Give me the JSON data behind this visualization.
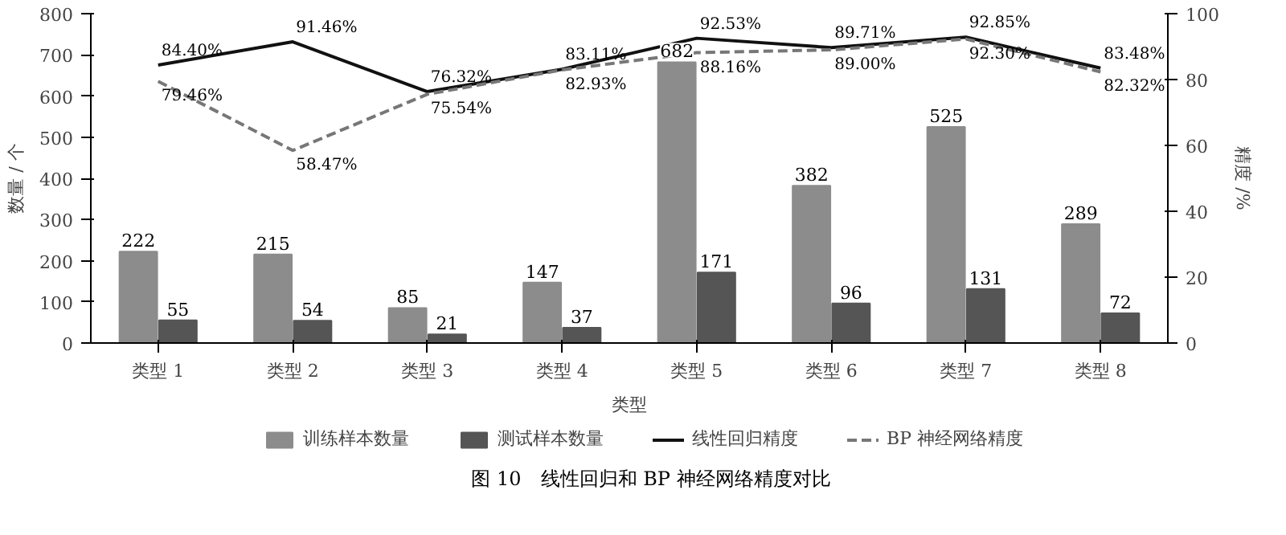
{
  "chart_data": {
    "type": "bar",
    "title": "图 10　线性回归和 BP 神经网络精度对比",
    "xlabel": "类型",
    "ylabel": "数量 / 个",
    "y2label": "精度 /%",
    "categories": [
      "类型 1",
      "类型 2",
      "类型 3",
      "类型 4",
      "类型 5",
      "类型 6",
      "类型 7",
      "类型 8"
    ],
    "series": [
      {
        "name": "训练样本数量",
        "color": "#8c8c8c",
        "values": [
          222,
          215,
          85,
          147,
          682,
          382,
          525,
          289
        ],
        "value_labels": [
          "222",
          "215",
          "85",
          "147",
          "682",
          "382",
          "525",
          "289"
        ]
      },
      {
        "name": "测试样本数量",
        "color": "#555555",
        "values": [
          55,
          54,
          21,
          37,
          171,
          96,
          131,
          72
        ],
        "value_labels": [
          "55",
          "54",
          "21",
          "37",
          "171",
          "96",
          "131",
          "72"
        ]
      },
      {
        "name": "线性回归精度",
        "type": "line",
        "axis": "y2",
        "color": "#111111",
        "line_style": "solid",
        "values": [
          84.4,
          91.46,
          76.32,
          83.11,
          92.53,
          89.71,
          92.85,
          83.48
        ],
        "value_labels": [
          "84.40%",
          "91.46%",
          "76.32%",
          "83.11%",
          "92.53%",
          "89.71%",
          "92.85%",
          "83.48%"
        ]
      },
      {
        "name": "BP 神经网络精度",
        "type": "line",
        "axis": "y2",
        "color": "#777777",
        "line_style": "dashed",
        "values": [
          79.46,
          58.47,
          75.54,
          82.93,
          88.16,
          89.0,
          92.3,
          82.32
        ],
        "value_labels": [
          "79.46%",
          "58.47%",
          "75.54%",
          "82.93%",
          "88.16%",
          "89.00%",
          "92.30%",
          "82.32%"
        ]
      }
    ],
    "ylim": [
      0,
      800
    ],
    "yticks": [
      0,
      100,
      200,
      300,
      400,
      500,
      600,
      700,
      800
    ],
    "y2lim": [
      0,
      100
    ],
    "y2ticks": [
      0,
      20,
      40,
      60,
      80,
      100
    ],
    "grid": false,
    "legend": "bottom",
    "marker": "none"
  }
}
